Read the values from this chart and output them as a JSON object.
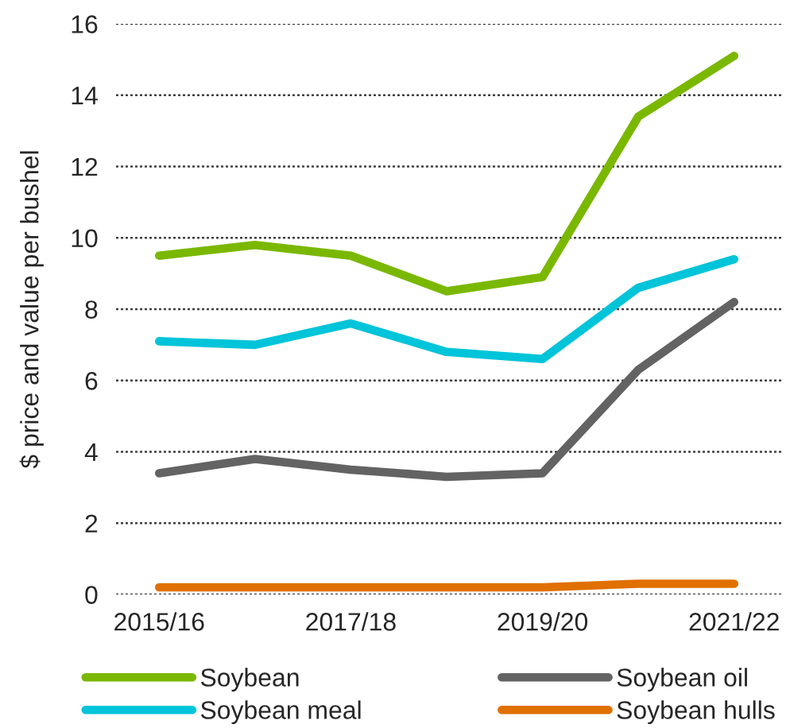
{
  "chart_data": {
    "type": "line",
    "ylabel": "$ price and value per bushel",
    "categories": [
      "2015/16",
      null,
      "2017/18",
      null,
      "2019/20",
      null,
      "2021/22"
    ],
    "series": [
      {
        "name": "Soybean",
        "color": "#7ab800",
        "values": [
          9.5,
          9.8,
          9.5,
          8.5,
          8.9,
          13.4,
          15.1
        ]
      },
      {
        "name": "Soybean oil",
        "color": "#636363",
        "values": [
          3.4,
          3.8,
          3.5,
          3.3,
          3.4,
          6.3,
          8.2
        ]
      },
      {
        "name": "Soybean meal",
        "color": "#00c4d9",
        "values": [
          7.1,
          7.0,
          7.6,
          6.8,
          6.6,
          8.6,
          9.4
        ]
      },
      {
        "name": "Soybean hulls",
        "color": "#e07000",
        "values": [
          0.2,
          0.2,
          0.2,
          0.2,
          0.2,
          0.3,
          0.3
        ]
      }
    ],
    "ylim": [
      0,
      16
    ],
    "yticks": [
      0,
      2,
      4,
      6,
      8,
      10,
      12,
      14,
      16
    ],
    "grid": "y",
    "legend": "bottom"
  }
}
